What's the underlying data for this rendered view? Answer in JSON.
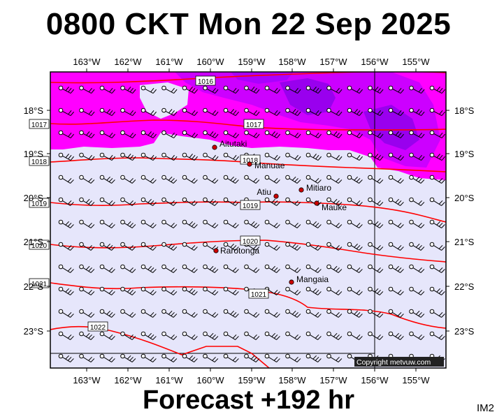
{
  "title": "0800 CKT Mon 22 Sep 2025",
  "footer": "Forecast +192 hr",
  "image_id": "IM2",
  "copyright": "Copyright metvuw.com",
  "colors": {
    "land_bg": "#e6e6fb",
    "rain_light": "#ff00ff",
    "rain_mid": "#cc00ff",
    "rain_heavy": "#9900ee",
    "isobar": "#ff0000",
    "frame": "#000000"
  },
  "lon_labels": [
    "163°W",
    "162°W",
    "161°W",
    "160°W",
    "159°W",
    "158°W",
    "157°W",
    "156°W",
    "155°W"
  ],
  "lat_labels": [
    "18°S",
    "19°S",
    "20°S",
    "21°S",
    "22°S",
    "23°S"
  ],
  "places": [
    {
      "name": "Aitutaki"
    },
    {
      "name": "Manuae"
    },
    {
      "name": "Mitiaro"
    },
    {
      "name": "Atiu"
    },
    {
      "name": "Mauke"
    },
    {
      "name": "Rarotonga"
    },
    {
      "name": "Mangaia"
    }
  ],
  "isobar_labels": [
    "1016",
    "1017",
    "1017",
    "1018",
    "1018",
    "1019",
    "1019",
    "1020",
    "1020",
    "1021",
    "1021",
    "1022"
  ]
}
